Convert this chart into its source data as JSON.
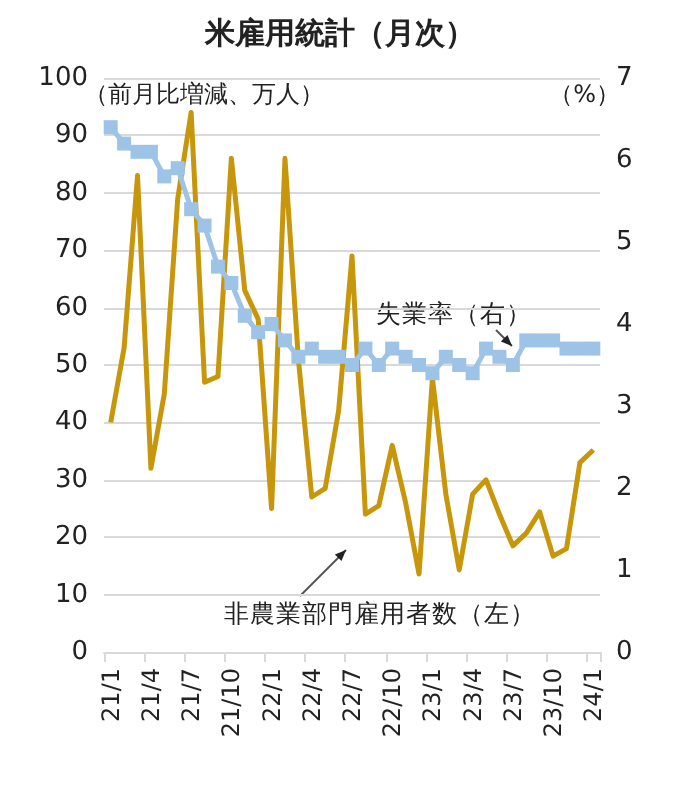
{
  "chart_data": {
    "type": "line",
    "title": "米雇用統計（月次）",
    "ylabel": "（前月比増減、万人）",
    "y2label": "（%）",
    "categories": [
      "21/1",
      null,
      null,
      "21/4",
      null,
      null,
      "21/7",
      null,
      null,
      "21/10",
      null,
      null,
      "22/1",
      null,
      null,
      "22/4",
      null,
      null,
      "22/7",
      null,
      null,
      "22/10",
      null,
      null,
      "23/1",
      null,
      null,
      "23/4",
      null,
      null,
      "23/7",
      null,
      null,
      "23/10",
      null,
      null,
      "24/1"
    ],
    "series": [
      {
        "name": "非農業部門雇用者数（左）",
        "color": "#c8960a",
        "marker": "none",
        "values": [
          40,
          53,
          83,
          32,
          45,
          79,
          94,
          47,
          48,
          86,
          63,
          58,
          25,
          86,
          51,
          27,
          28.5,
          42,
          69,
          24,
          25.5,
          36,
          26,
          13.6,
          47.7,
          27.5,
          14.3,
          27.5,
          30,
          24,
          18.5,
          20.7,
          24.4,
          16.7,
          18,
          33,
          35.2
        ]
      },
      {
        "name": "失業率（右）",
        "color": "#9dc3e6",
        "marker": "square",
        "axis": "y2",
        "values": [
          6.4,
          6.2,
          6.1,
          6.1,
          5.8,
          5.9,
          5.4,
          5.2,
          4.7,
          4.5,
          4.1,
          3.9,
          4.0,
          3.8,
          3.6,
          3.7,
          3.6,
          3.6,
          3.5,
          3.7,
          3.5,
          3.7,
          3.6,
          3.5,
          3.4,
          3.6,
          3.5,
          3.4,
          3.7,
          3.6,
          3.5,
          3.8,
          3.8,
          3.8,
          3.7,
          3.7,
          3.7
        ]
      }
    ],
    "ylim": [
      0,
      100
    ],
    "yticks": [
      0,
      10,
      20,
      30,
      40,
      50,
      60,
      70,
      80,
      90,
      100
    ],
    "y2lim": [
      0,
      7
    ],
    "y2ticks": [
      0,
      1,
      2,
      3,
      4,
      5,
      6,
      7
    ],
    "grid": "y",
    "legend": false
  }
}
